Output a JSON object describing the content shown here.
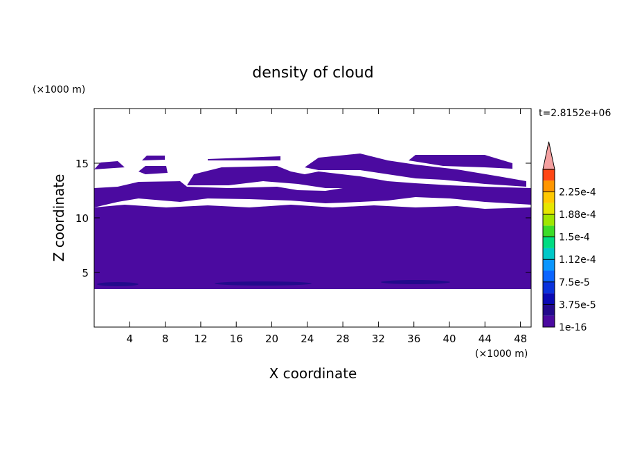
{
  "chart_data": {
    "type": "contour",
    "title": "density of cloud",
    "x_label": "X coordinate",
    "y_label": "Z coordinate",
    "x_unit": "(×1000 m)",
    "y_unit": "(×1000 m)",
    "time_label": "t=2.8152e+06",
    "xlim": [
      0,
      49.2
    ],
    "ylim": [
      0,
      20
    ],
    "xticks": [
      4,
      8,
      12,
      16,
      20,
      24,
      28,
      32,
      36,
      40,
      44,
      48
    ],
    "yticks": [
      5,
      10,
      15
    ],
    "levels": [
      {
        "value": 1e-16,
        "label": "1e-16"
      },
      1.875e-05,
      {
        "value": 3.75e-05,
        "label": "3.75e-5"
      },
      5.625e-05,
      {
        "value": 7.5e-05,
        "label": "7.5e-5"
      },
      9.375e-05,
      {
        "value": 0.000112,
        "label": "1.12e-4"
      },
      0.00013125,
      {
        "value": 0.00015,
        "label": "1.5e-4"
      },
      0.00016875,
      {
        "value": 0.000188,
        "label": "1.88e-4"
      },
      0.00020625,
      {
        "value": 0.000225,
        "label": "2.25e-4"
      },
      0.00024375
    ],
    "colors": [
      "#4b0aa0",
      "#230a8c",
      "#0a0ab4",
      "#0a32dc",
      "#0a64ff",
      "#0a96ff",
      "#00c8c8",
      "#00dc82",
      "#3cdc28",
      "#a0e600",
      "#e6e600",
      "#ffc800",
      "#ff9600",
      "#ff4614"
    ],
    "over_color": "#f4a0a0"
  }
}
